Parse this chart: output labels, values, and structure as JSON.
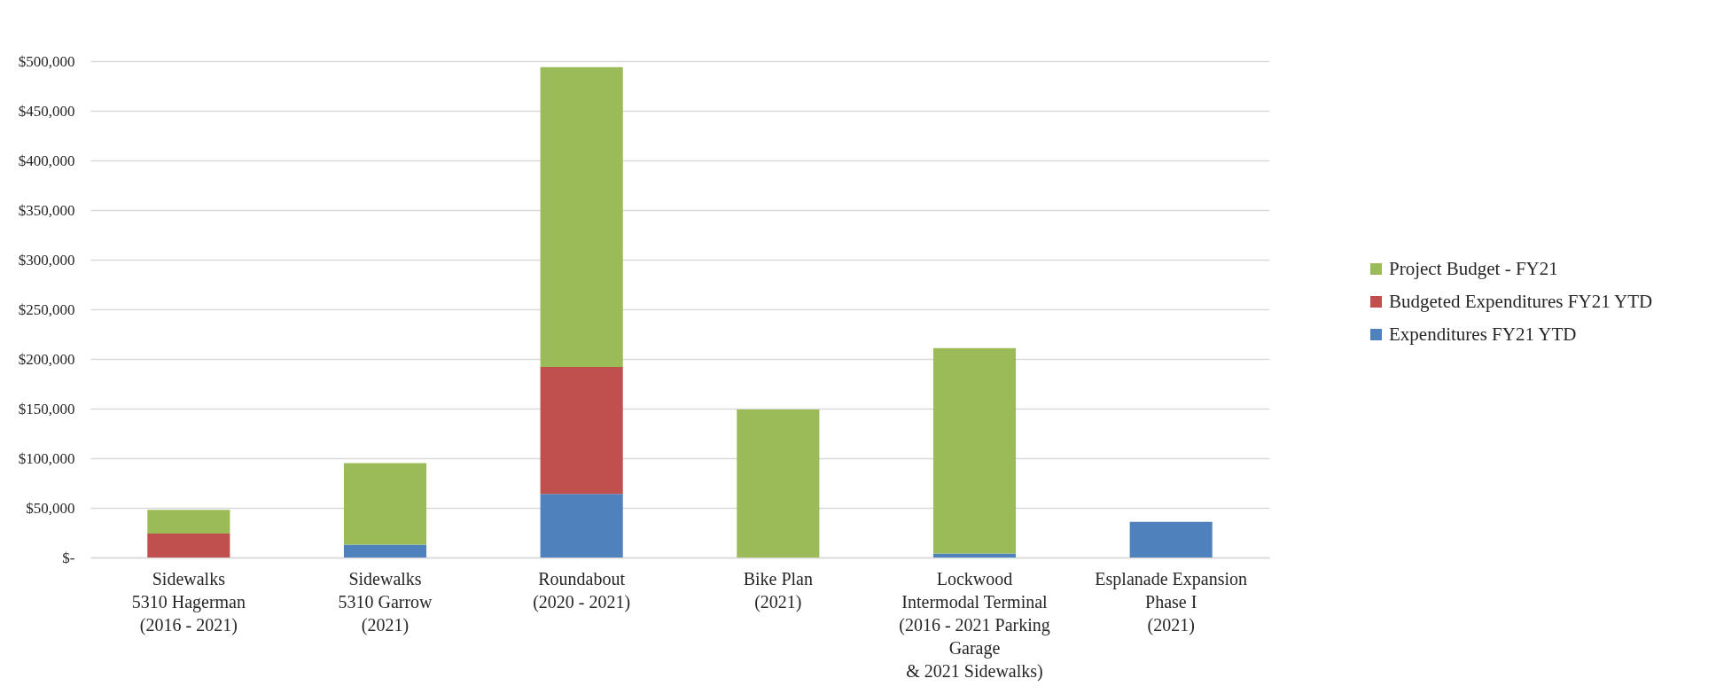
{
  "chart_data": {
    "type": "bar",
    "stacked": true,
    "categories": [
      "Sidewalks\n5310 Hagerman\n(2016 - 2021)",
      "Sidewalks\n5310 Garrow\n(2021)",
      "Roundabout\n(2020 - 2021)",
      "Bike Plan\n(2021)",
      "Lockwood\nIntermodal Terminal\n(2016 - 2021 Parking\nGarage\n& 2021 Sidewalks)",
      "Esplanade Expansion\nPhase I\n(2021)"
    ],
    "series": [
      {
        "name": "Expenditures FY21 YTD",
        "color": "#4f81bd",
        "values": [
          0,
          13000,
          64000,
          0,
          4000,
          36000
        ]
      },
      {
        "name": "Budgeted Expenditures FY21 YTD",
        "color": "#c0504d",
        "values": [
          24000,
          0,
          128000,
          0,
          0,
          0
        ]
      },
      {
        "name": "Project Budget - FY21",
        "color": "#9bbb59",
        "values": [
          24000,
          82000,
          302000,
          149000,
          207000,
          0
        ]
      }
    ],
    "ylim": [
      0,
      500000
    ],
    "yticks": [
      {
        "value": 0,
        "label": "$-"
      },
      {
        "value": 50000,
        "label": "$50,000"
      },
      {
        "value": 100000,
        "label": "$100,000"
      },
      {
        "value": 150000,
        "label": "$150,000"
      },
      {
        "value": 200000,
        "label": "$200,000"
      },
      {
        "value": 250000,
        "label": "$250,000"
      },
      {
        "value": 300000,
        "label": "$300,000"
      },
      {
        "value": 350000,
        "label": "$350,000"
      },
      {
        "value": 400000,
        "label": "$400,000"
      },
      {
        "value": 450000,
        "label": "$450,000"
      },
      {
        "value": 500000,
        "label": "$500,000"
      }
    ],
    "grid": "y",
    "legend": "right"
  }
}
